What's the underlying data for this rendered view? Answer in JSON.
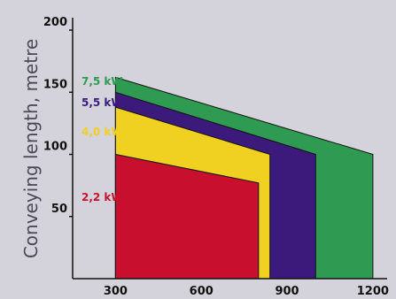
{
  "chart_data": {
    "type": "area",
    "ylabel": "Conveying length, metre",
    "xlabel": "",
    "x_ticks": [
      "300",
      "600",
      "900",
      "1200"
    ],
    "y_ticks": [
      "50",
      "100",
      "150",
      "200"
    ],
    "xlim": [
      150,
      1250
    ],
    "ylim": [
      0,
      210
    ],
    "series": [
      {
        "name": "7,5 kW",
        "color": "#2e9a52",
        "label_color": "#2e9a52",
        "points": [
          [
            300,
            162
          ],
          [
            1200,
            100
          ],
          [
            1200,
            0
          ],
          [
            300,
            0
          ]
        ]
      },
      {
        "name": "5,5 kW",
        "color": "#3b1a7c",
        "label_color": "#3b1a7c",
        "points": [
          [
            300,
            150
          ],
          [
            1000,
            100
          ],
          [
            1000,
            0
          ],
          [
            300,
            0
          ]
        ]
      },
      {
        "name": "4,0 kW",
        "color": "#f0d020",
        "label_color": "#f0d020",
        "points": [
          [
            300,
            138
          ],
          [
            840,
            100
          ],
          [
            840,
            0
          ],
          [
            300,
            0
          ]
        ]
      },
      {
        "name": "2,2 kW",
        "color": "#c8102e",
        "label_color": "#c8102e",
        "points": [
          [
            300,
            100
          ],
          [
            800,
            77
          ],
          [
            800,
            0
          ],
          [
            300,
            0
          ]
        ]
      }
    ]
  }
}
